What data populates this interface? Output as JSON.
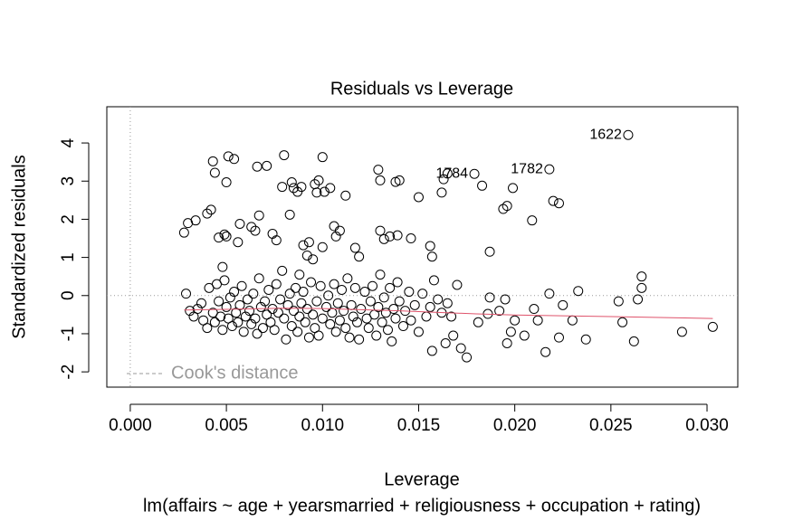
{
  "chart_data": {
    "type": "scatter",
    "title": "Residuals vs Leverage",
    "x_label": "Leverage",
    "y_label": "Standardized residuals",
    "subtitle": "lm(affairs ~ age + yearsmarried + religiousness + occupation + rating)",
    "xlim": [
      -0.00122,
      0.0316
    ],
    "ylim": [
      -2.4,
      4.95
    ],
    "xticks": [
      {
        "value": 0,
        "label": "0.000"
      },
      {
        "value": 0.005,
        "label": "0.005"
      },
      {
        "value": 0.01,
        "label": "0.010"
      },
      {
        "value": 0.015,
        "label": "0.015"
      },
      {
        "value": 0.02,
        "label": "0.020"
      },
      {
        "value": 0.025,
        "label": "0.025"
      },
      {
        "value": 0.03,
        "label": "0.030"
      }
    ],
    "yticks": [
      -2,
      -1,
      0,
      1,
      2,
      3,
      4
    ],
    "point_color": "#000000",
    "x": [
      0.0028,
      0.003,
      0.0034,
      0.004,
      0.0042,
      0.0043,
      0.0044,
      0.0046,
      0.0049,
      0.005,
      0.0051,
      0.005,
      0.0054,
      0.0056,
      0.0057,
      0.0063,
      0.0065,
      0.0066,
      0.0067,
      0.0071,
      0.0074,
      0.0076,
      0.0079,
      0.008,
      0.0083,
      0.0084,
      0.0085,
      0.0087,
      0.0089,
      0.009,
      0.0092,
      0.0093,
      0.0096,
      0.0097,
      0.0098,
      0.01,
      0.01,
      0.0101,
      0.0104,
      0.0106,
      0.0107,
      0.0109,
      0.0112,
      0.0117,
      0.0119,
      0.0129,
      0.013,
      0.0132,
      0.013,
      0.0135,
      0.0138,
      0.014,
      0.0139,
      0.0146,
      0.015,
      0.0156,
      0.0157,
      0.0162,
      0.0163,
      0.0165,
      0.0179,
      0.0183,
      0.0187,
      0.0194,
      0.0196,
      0.0199,
      0.0209,
      0.0218,
      0.022,
      0.0223,
      0.0259,
      0.0095,
      0.0088,
      0.0048,
      0.0029,
      0.0031,
      0.0033,
      0.0035,
      0.0037,
      0.0038,
      0.004,
      0.0041,
      0.0043,
      0.0044,
      0.0045,
      0.0046,
      0.0047,
      0.0048,
      0.0049,
      0.005,
      0.0051,
      0.0052,
      0.0053,
      0.0054,
      0.0055,
      0.0056,
      0.0057,
      0.0058,
      0.0059,
      0.006,
      0.0061,
      0.0062,
      0.0063,
      0.0064,
      0.0065,
      0.0066,
      0.0067,
      0.0068,
      0.0069,
      0.007,
      0.0071,
      0.0072,
      0.0073,
      0.0074,
      0.0075,
      0.0076,
      0.0077,
      0.0078,
      0.0079,
      0.008,
      0.0081,
      0.0082,
      0.0083,
      0.0084,
      0.0085,
      0.0086,
      0.0087,
      0.0088,
      0.0089,
      0.009,
      0.0091,
      0.0092,
      0.0093,
      0.0094,
      0.0095,
      0.0096,
      0.0097,
      0.0098,
      0.0099,
      0.01,
      0.0102,
      0.0103,
      0.0104,
      0.0105,
      0.0106,
      0.0107,
      0.0108,
      0.0109,
      0.011,
      0.0111,
      0.0112,
      0.0113,
      0.0114,
      0.0115,
      0.0116,
      0.0117,
      0.0118,
      0.0119,
      0.012,
      0.0122,
      0.0123,
      0.0124,
      0.0125,
      0.0126,
      0.0127,
      0.0128,
      0.0129,
      0.013,
      0.0131,
      0.0132,
      0.0133,
      0.0134,
      0.0135,
      0.0136,
      0.0137,
      0.0138,
      0.0139,
      0.014,
      0.0142,
      0.0143,
      0.0145,
      0.0146,
      0.0148,
      0.015,
      0.0152,
      0.0154,
      0.0156,
      0.0158,
      0.016,
      0.0162,
      0.0165,
      0.0167,
      0.0157,
      0.0164,
      0.0168,
      0.0172,
      0.0175,
      0.017,
      0.0181,
      0.0186,
      0.0187,
      0.0192,
      0.0195,
      0.0196,
      0.0198,
      0.02,
      0.0205,
      0.021,
      0.0212,
      0.0216,
      0.0218,
      0.0223,
      0.0225,
      0.023,
      0.0233,
      0.0237,
      0.0254,
      0.0256,
      0.0262,
      0.0264,
      0.0266,
      0.0266,
      0.0287,
      0.0303
    ],
    "values": [
      1.65,
      1.9,
      1.97,
      2.15,
      2.25,
      3.52,
      3.22,
      1.52,
      1.6,
      1.55,
      3.65,
      2.97,
      3.58,
      1.4,
      1.88,
      1.8,
      1.7,
      3.38,
      2.1,
      3.4,
      1.62,
      1.45,
      2.85,
      3.68,
      2.12,
      2.97,
      2.82,
      2.72,
      2.85,
      1.32,
      1.05,
      1.4,
      2.92,
      2.7,
      3.02,
      1.27,
      3.63,
      2.72,
      2.82,
      1.82,
      1.55,
      1.7,
      2.62,
      1.25,
      1.02,
      3.3,
      1.7,
      1.48,
      3.02,
      1.55,
      2.98,
      3.02,
      1.58,
      1.5,
      2.58,
      1.3,
      1.02,
      2.7,
      3.05,
      3.2,
      3.19,
      2.88,
      1.15,
      2.27,
      2.35,
      2.82,
      1.97,
      3.31,
      2.48,
      2.42,
      4.21,
      0.95,
      0.55,
      0.75,
      0.05,
      -0.4,
      -0.55,
      -0.35,
      -0.2,
      -0.65,
      -0.85,
      0.2,
      -0.45,
      -0.7,
      0.3,
      -0.15,
      -0.55,
      -0.9,
      0.4,
      -0.3,
      -0.6,
      -0.05,
      -0.8,
      0.1,
      -0.45,
      -0.7,
      -0.25,
      0.25,
      -0.95,
      -0.55,
      -0.1,
      -0.4,
      -0.75,
      0.05,
      -0.6,
      -1.0,
      0.45,
      -0.3,
      -0.85,
      -0.15,
      -0.5,
      0.15,
      -0.7,
      -0.35,
      -0.9,
      0.3,
      -0.45,
      -0.1,
      0.65,
      -0.6,
      -1.15,
      -0.25,
      0.05,
      -0.8,
      -0.4,
      0.2,
      -0.95,
      -0.55,
      -0.2,
      0.1,
      -0.7,
      -0.35,
      -1.1,
      0.35,
      -0.5,
      -0.85,
      -0.15,
      -1.05,
      0.25,
      -0.6,
      -0.3,
      0.0,
      -0.75,
      -0.45,
      0.3,
      -0.95,
      -0.2,
      -0.65,
      0.15,
      -0.4,
      -0.85,
      0.45,
      -1.1,
      -0.25,
      -0.55,
      0.2,
      -0.7,
      -1.15,
      -0.35,
      0.1,
      -0.6,
      -0.85,
      -0.15,
      0.25,
      -0.5,
      -1.05,
      -0.3,
      0.55,
      -0.7,
      -0.05,
      -0.45,
      -0.9,
      0.2,
      -1.2,
      -0.35,
      -0.6,
      0.35,
      -0.15,
      -0.8,
      -0.4,
      0.1,
      -0.65,
      -0.25,
      -0.95,
      0.05,
      -0.55,
      -0.3,
      0.4,
      -0.1,
      -0.45,
      -0.2,
      -0.55,
      -1.45,
      -1.25,
      -1.05,
      -1.38,
      -1.62,
      0.28,
      -0.7,
      -0.48,
      -0.05,
      -0.4,
      -0.1,
      -1.25,
      -0.95,
      -0.65,
      -1.05,
      -0.35,
      -0.65,
      -1.48,
      0.05,
      -1.1,
      -0.25,
      -0.65,
      0.12,
      -1.15,
      -0.15,
      -0.7,
      -1.2,
      -0.1,
      0.5,
      0.2,
      -0.95,
      -0.82
    ],
    "smooth": {
      "color": "#df536b",
      "x": [
        0.0028,
        0.005,
        0.008,
        0.01,
        0.012,
        0.014,
        0.016,
        0.018,
        0.02,
        0.025,
        0.0303
      ],
      "values": [
        -0.38,
        -0.36,
        -0.33,
        -0.34,
        -0.37,
        -0.4,
        -0.44,
        -0.48,
        -0.51,
        -0.55,
        -0.6
      ]
    },
    "annotations": [
      {
        "text": "1622",
        "x": 0.0259,
        "y": 4.21
      },
      {
        "text": "1782",
        "x": 0.0218,
        "y": 3.31
      },
      {
        "text": "1784",
        "x": 0.0179,
        "y": 3.19
      }
    ],
    "reference_color": "#999999",
    "legend": {
      "labels": [
        "Cook's distance"
      ],
      "position": "bottomleft",
      "color": "#999999"
    }
  }
}
